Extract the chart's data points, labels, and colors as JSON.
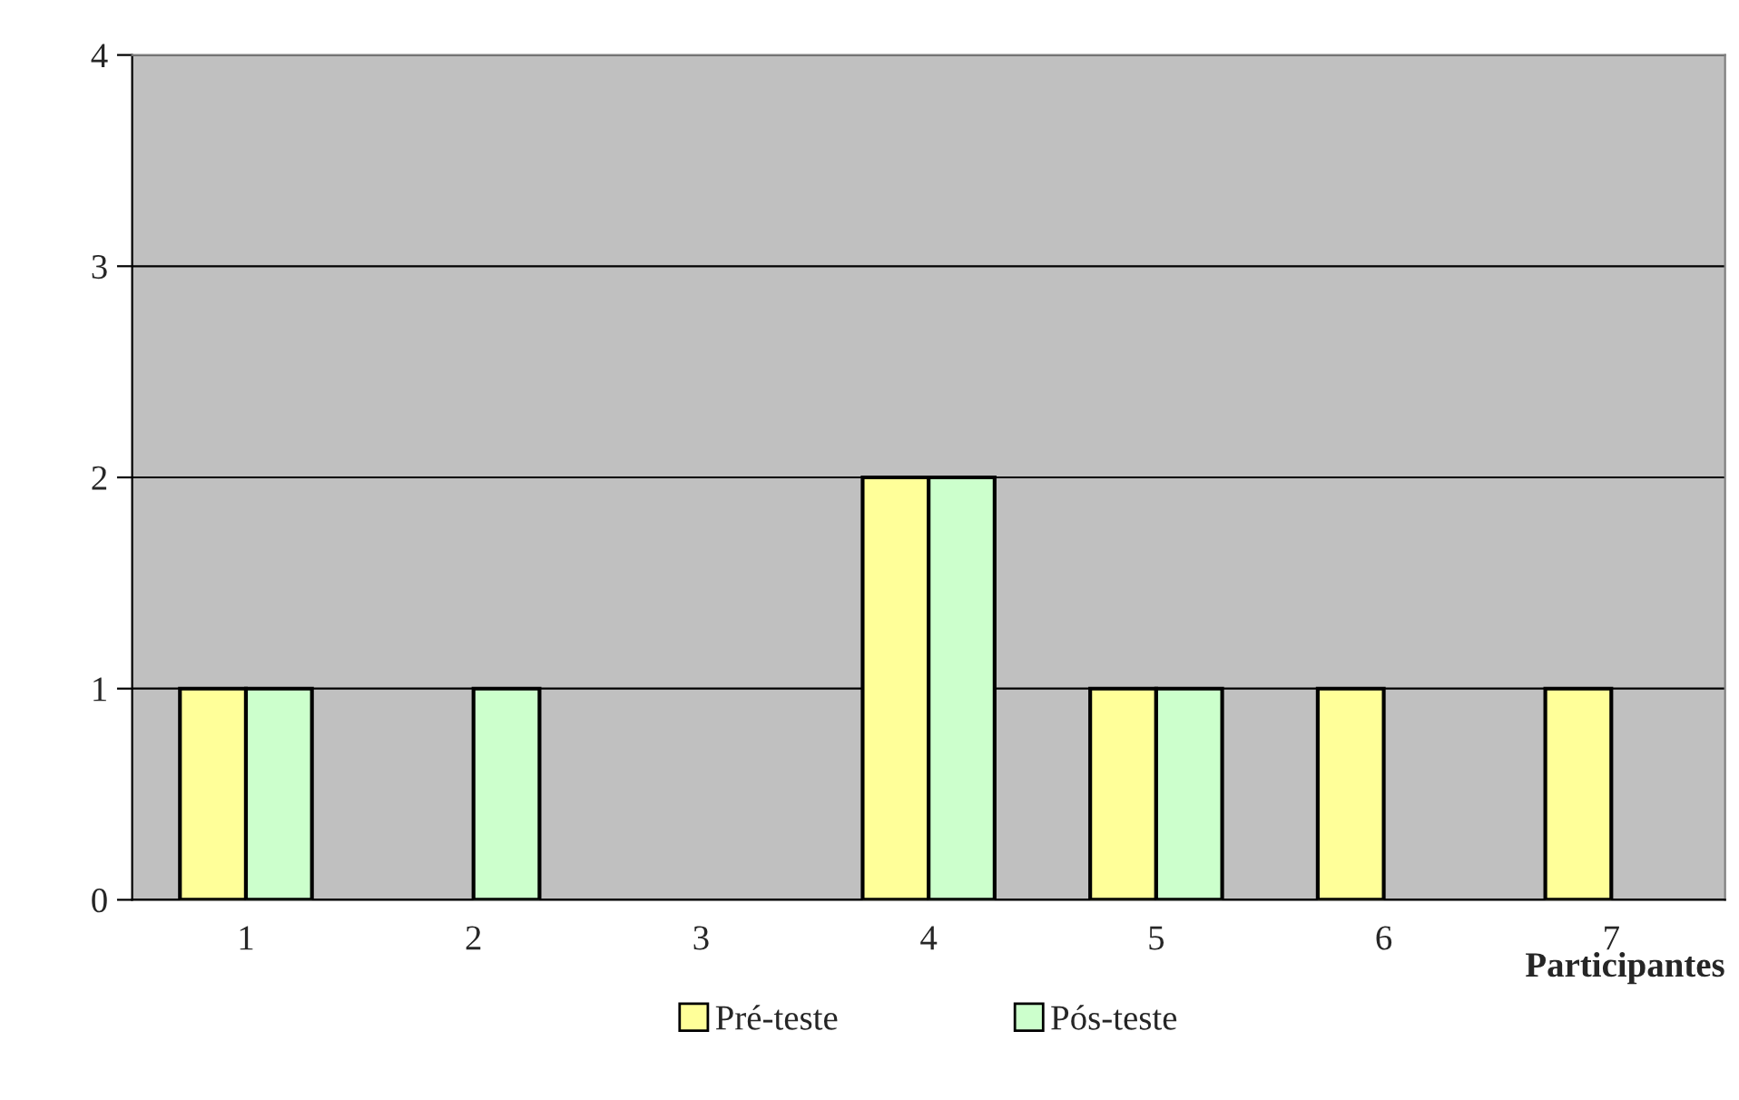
{
  "chart_data": {
    "type": "bar",
    "xlabel": "Participantes",
    "categories": [
      "1",
      "2",
      "3",
      "4",
      "5",
      "6",
      "7"
    ],
    "series": [
      {
        "name": "Pré-teste",
        "color": "#ffff99",
        "values": [
          1,
          0,
          0,
          2,
          1,
          1,
          1
        ]
      },
      {
        "name": "Pós-teste",
        "color": "#ccffcc",
        "values": [
          1,
          1,
          0,
          2,
          1,
          0,
          0
        ]
      }
    ],
    "ylim": [
      0,
      4
    ],
    "yticks": [
      0,
      1,
      2,
      3,
      4
    ],
    "grid": "y",
    "legend": "bottom"
  }
}
